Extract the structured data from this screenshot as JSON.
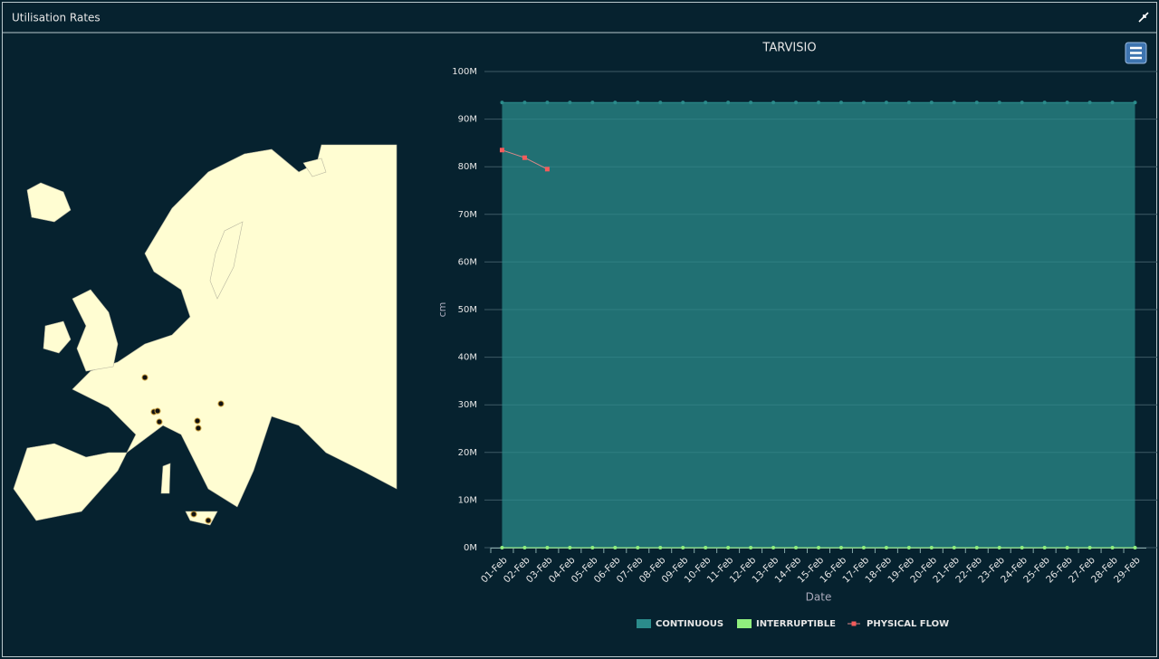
{
  "panel": {
    "title": "Utilisation Rates"
  },
  "chart_data": {
    "type": "area",
    "title": "TARVISIO",
    "x_label": "Date",
    "y_label": "cm",
    "categories": [
      "01-Feb",
      "02-Feb",
      "03-Feb",
      "04-Feb",
      "05-Feb",
      "06-Feb",
      "07-Feb",
      "08-Feb",
      "09-Feb",
      "10-Feb",
      "11-Feb",
      "12-Feb",
      "13-Feb",
      "14-Feb",
      "15-Feb",
      "16-Feb",
      "17-Feb",
      "18-Feb",
      "19-Feb",
      "20-Feb",
      "21-Feb",
      "22-Feb",
      "23-Feb",
      "24-Feb",
      "25-Feb",
      "26-Feb",
      "27-Feb",
      "28-Feb",
      "29-Feb"
    ],
    "series": [
      {
        "name": "CONTINUOUS",
        "color": "#2b8b8b",
        "values": [
          93500000,
          93500000,
          93500000,
          93500000,
          93500000,
          93500000,
          93500000,
          93500000,
          93500000,
          93500000,
          93500000,
          93500000,
          93500000,
          93500000,
          93500000,
          93500000,
          93500000,
          93500000,
          93500000,
          93500000,
          93500000,
          93500000,
          93500000,
          93500000,
          93500000,
          93500000,
          93500000,
          93500000,
          93500000
        ]
      },
      {
        "name": "INTERRUPTIBLE",
        "color": "#90ee7e",
        "values": [
          0,
          0,
          0,
          0,
          0,
          0,
          0,
          0,
          0,
          0,
          0,
          0,
          0,
          0,
          0,
          0,
          0,
          0,
          0,
          0,
          0,
          0,
          0,
          0,
          0,
          0,
          0,
          0,
          0
        ]
      },
      {
        "name": "PHYSICAL FLOW",
        "color": "#f45b5b",
        "values": [
          83500000,
          81900000,
          79500000,
          null,
          null,
          null,
          null,
          null,
          null,
          null,
          null,
          null,
          null,
          null,
          null,
          null,
          null,
          null,
          null,
          null,
          null,
          null,
          null,
          null,
          null,
          null,
          null,
          null,
          null
        ]
      }
    ],
    "ylim": [
      0,
      100000000
    ],
    "yticks": [
      {
        "value": 0,
        "label": "0M"
      },
      {
        "value": 10000000,
        "label": "10M"
      },
      {
        "value": 20000000,
        "label": "20M"
      },
      {
        "value": 30000000,
        "label": "30M"
      },
      {
        "value": 40000000,
        "label": "40M"
      },
      {
        "value": 50000000,
        "label": "50M"
      },
      {
        "value": 60000000,
        "label": "60M"
      },
      {
        "value": 70000000,
        "label": "70M"
      },
      {
        "value": 80000000,
        "label": "80M"
      },
      {
        "value": 90000000,
        "label": "90M"
      },
      {
        "value": 100000000,
        "label": "100M"
      }
    ],
    "grid": true
  }
}
